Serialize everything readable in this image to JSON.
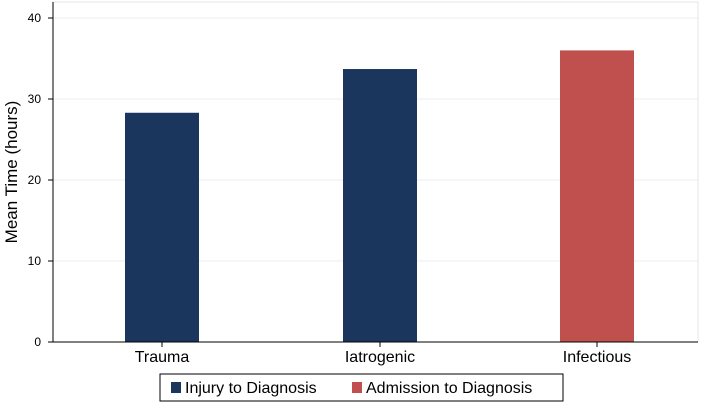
{
  "chart_data": {
    "type": "bar",
    "categories": [
      "Trauma",
      "Iatrogenic",
      "Infectious"
    ],
    "series": [
      {
        "name": "Injury to Diagnosis",
        "values": [
          28.3,
          33.7,
          null
        ],
        "color": "#1b365d"
      },
      {
        "name": "Admission to Diagnosis",
        "values": [
          null,
          null,
          36.0
        ],
        "color": "#c0504d"
      }
    ],
    "values": [
      28.3,
      33.7,
      36.0
    ],
    "title": "",
    "xlabel": "",
    "ylabel": "Mean Time (hours)",
    "ylim": [
      0,
      40
    ],
    "yticks": [
      "0",
      "10",
      "20",
      "30",
      "40"
    ],
    "grid": true,
    "legend_position": "bottom"
  }
}
